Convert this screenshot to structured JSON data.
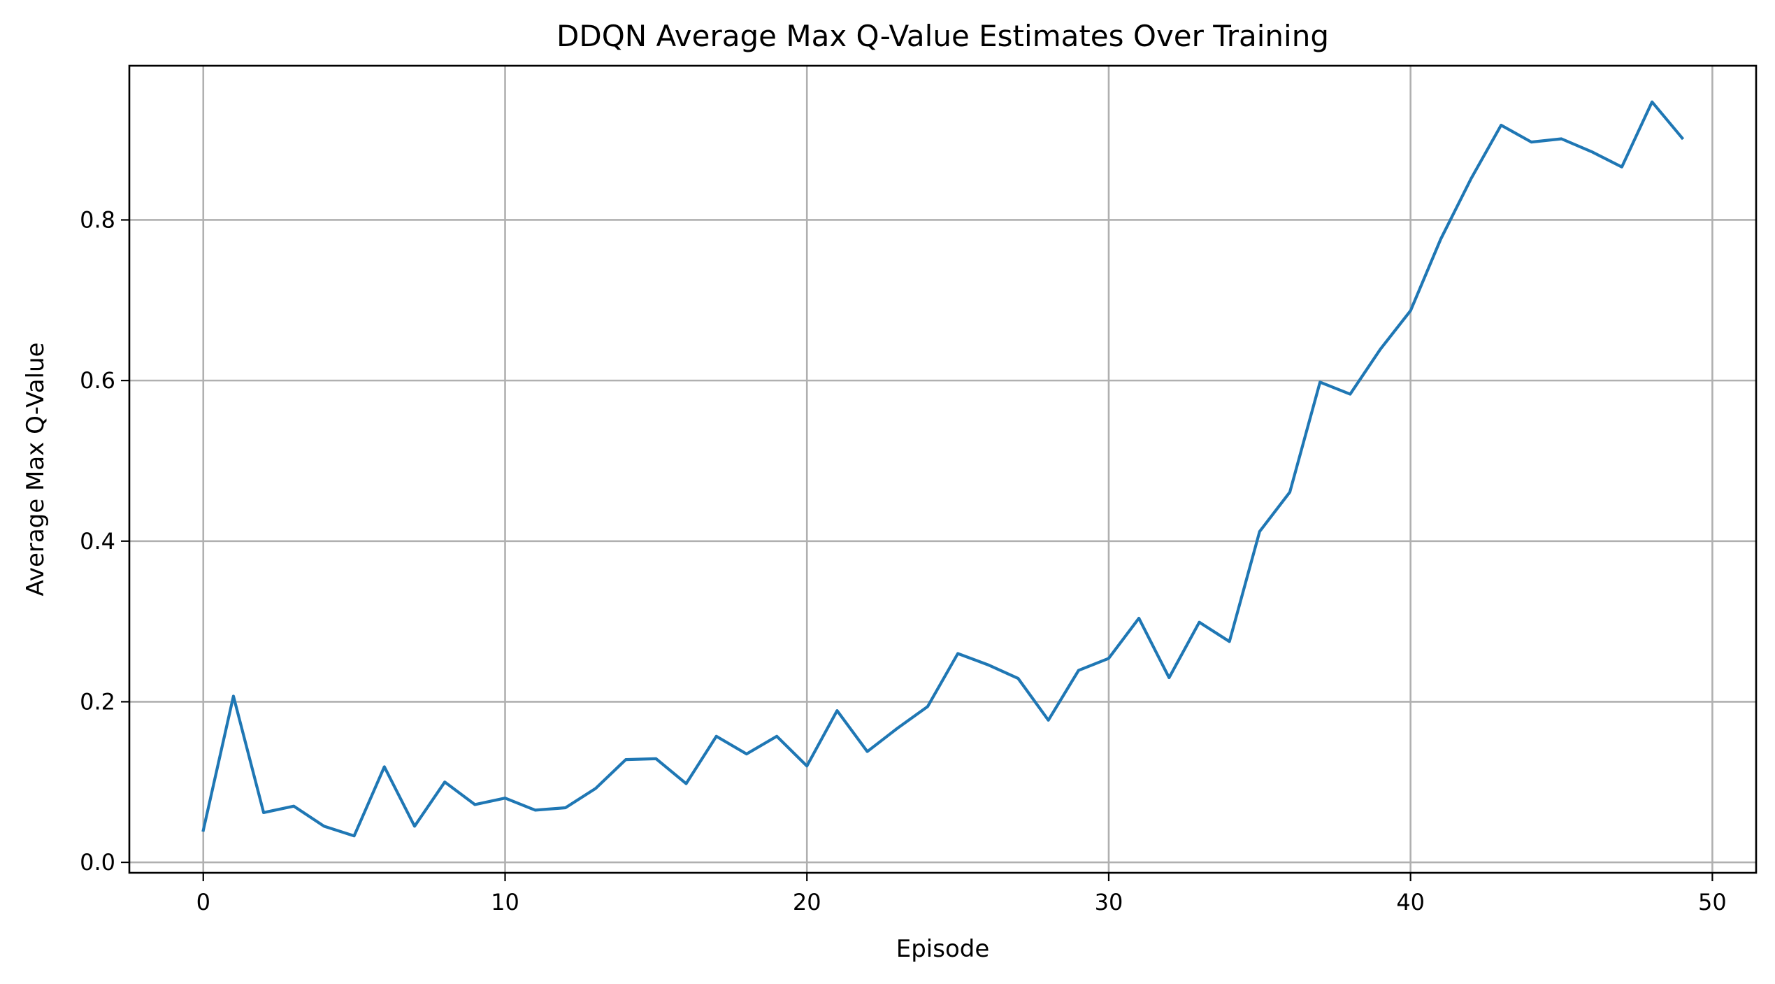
{
  "chart_data": {
    "type": "line",
    "title": "DDQN Average Max Q-Value Estimates Over Training",
    "xlabel": "Episode",
    "ylabel": "Average Max Q-Value",
    "xlim": [
      -2.45,
      51.45
    ],
    "ylim": [
      -0.013,
      0.992
    ],
    "xticks": [
      0,
      10,
      20,
      30,
      40,
      50
    ],
    "yticks": [
      0.0,
      0.2,
      0.4,
      0.6,
      0.8
    ],
    "xtick_labels": [
      "0",
      "10",
      "20",
      "30",
      "40",
      "50"
    ],
    "ytick_labels": [
      "0.0",
      "0.2",
      "0.4",
      "0.6",
      "0.8"
    ],
    "grid": true,
    "series": [
      {
        "color": "#1f77b4",
        "x": [
          0,
          1,
          2,
          3,
          4,
          5,
          6,
          7,
          8,
          9,
          10,
          11,
          12,
          13,
          14,
          15,
          16,
          17,
          18,
          19,
          20,
          21,
          22,
          23,
          24,
          25,
          26,
          27,
          28,
          29,
          30,
          31,
          32,
          33,
          34,
          35,
          36,
          37,
          38,
          39,
          40,
          41,
          42,
          43,
          44,
          45,
          46,
          47,
          48,
          49
        ],
        "y": [
          0.04,
          0.207,
          0.062,
          0.07,
          0.045,
          0.033,
          0.119,
          0.045,
          0.1,
          0.072,
          0.08,
          0.065,
          0.068,
          0.092,
          0.128,
          0.129,
          0.098,
          0.157,
          0.135,
          0.157,
          0.12,
          0.189,
          0.138,
          0.167,
          0.194,
          0.26,
          0.246,
          0.229,
          0.177,
          0.239,
          0.254,
          0.304,
          0.23,
          0.299,
          0.275,
          0.412,
          0.461,
          0.598,
          0.583,
          0.639,
          0.687,
          0.776,
          0.851,
          0.918,
          0.897,
          0.901,
          0.885,
          0.866,
          0.947,
          0.902
        ]
      }
    ]
  }
}
